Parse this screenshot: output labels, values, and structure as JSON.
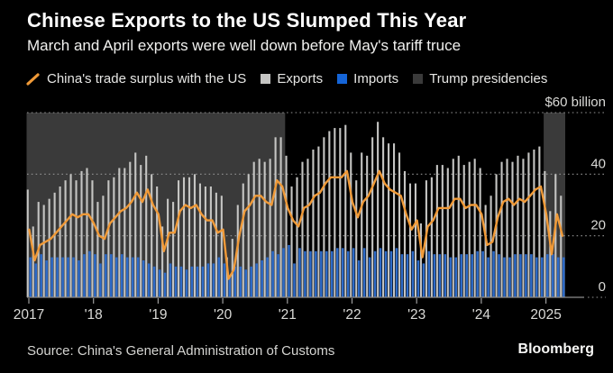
{
  "header": {
    "title": "Chinese Exports to the US Slumped This Year",
    "subtitle": "March and April exports were well down before May's tariff truce"
  },
  "legend": {
    "items": [
      {
        "label": "China's trade surplus with the US",
        "type": "line"
      },
      {
        "label": "Exports",
        "type": "square"
      },
      {
        "label": "Imports",
        "type": "square"
      },
      {
        "label": "Trump presidencies",
        "type": "square"
      }
    ]
  },
  "footer": {
    "source": "Source: China's General Administration of Customs",
    "brand": "Bloomberg"
  },
  "chart_data": {
    "type": "bar",
    "subtype": "monthly bars with line overlay and shaded period bands",
    "unit_label": "$60 billion",
    "start_month": "2017-01",
    "end_month": "2025-04",
    "x_axis": {
      "labels": [
        "2017",
        "'18",
        "'19",
        "'20",
        "'21",
        "'22",
        "'23",
        "'24",
        "2025"
      ]
    },
    "y_axis": {
      "range": [
        0,
        60
      ],
      "ticks": [
        {
          "value": 60,
          "label": "$60 billion"
        },
        {
          "value": 40,
          "label": "40"
        },
        {
          "value": 20,
          "label": "20"
        },
        {
          "value": 0,
          "label": "0"
        }
      ],
      "grid": "dotted"
    },
    "trump_presidencies": [
      {
        "from": "2017-01",
        "to": "2021-01"
      },
      {
        "from": "2025-01",
        "to": "2025-05"
      }
    ],
    "series": {
      "exports": {
        "name": "Exports",
        "values": [
          35,
          23,
          31,
          30,
          32,
          34,
          36,
          38,
          40,
          38,
          41,
          42,
          38,
          31,
          33,
          38,
          39,
          42,
          42,
          44,
          47,
          43,
          46,
          40,
          36,
          23,
          32,
          31,
          38,
          39,
          39,
          40,
          37,
          36,
          36,
          34,
          33,
          13,
          19,
          30,
          37,
          40,
          44,
          45,
          44,
          45,
          52,
          52,
          46,
          36,
          39,
          44,
          45,
          48,
          49,
          52,
          54,
          55,
          55,
          56,
          47,
          38,
          47,
          46,
          52,
          57,
          52,
          50,
          50,
          47,
          41,
          37,
          37,
          24,
          38,
          39,
          43,
          43,
          42,
          45,
          46,
          43,
          44,
          45,
          42,
          30,
          33,
          40,
          44,
          45,
          44,
          46,
          45,
          47,
          48,
          49,
          41,
          28,
          40,
          33
        ]
      },
      "imports": {
        "name": "Imports",
        "values": [
          13,
          11,
          14,
          12,
          13,
          13,
          13,
          13,
          13,
          12,
          14,
          15,
          14,
          11,
          14,
          14,
          13,
          14,
          13,
          13,
          13,
          12,
          11,
          10,
          9,
          8,
          11,
          10,
          10,
          9,
          10,
          10,
          10,
          11,
          11,
          13,
          11,
          7,
          10,
          10,
          9,
          10,
          11,
          12,
          13,
          15,
          14,
          16,
          17,
          11,
          16,
          15,
          15,
          15,
          15,
          15,
          15,
          16,
          16,
          15,
          16,
          12,
          16,
          13,
          15,
          16,
          15,
          15,
          16,
          14,
          14,
          15,
          12,
          11,
          15,
          14,
          14,
          14,
          13,
          13,
          14,
          14,
          14,
          15,
          15,
          13,
          15,
          14,
          13,
          13,
          14,
          14,
          14,
          14,
          13,
          13,
          14,
          14,
          13,
          13
        ]
      },
      "surplus": {
        "name": "China's trade surplus with the US",
        "values": [
          22,
          12,
          17,
          18,
          19,
          21,
          23,
          25,
          27,
          26,
          27,
          27,
          24,
          20,
          19,
          24,
          26,
          28,
          29,
          31,
          34,
          31,
          35,
          30,
          27,
          15,
          21,
          21,
          28,
          30,
          29,
          30,
          27,
          25,
          25,
          21,
          22,
          6,
          9,
          20,
          28,
          30,
          33,
          33,
          31,
          30,
          38,
          36,
          29,
          25,
          23,
          29,
          30,
          33,
          34,
          37,
          39,
          39,
          39,
          41,
          31,
          26,
          31,
          33,
          37,
          41,
          37,
          35,
          34,
          33,
          27,
          22,
          25,
          13,
          23,
          25,
          29,
          29,
          29,
          32,
          32,
          29,
          30,
          30,
          27,
          17,
          18,
          26,
          31,
          32,
          30,
          32,
          31,
          33,
          35,
          36,
          27,
          14,
          27,
          20
        ]
      }
    },
    "colors": {
      "background": "#000000",
      "surplus_line": "#f09a38",
      "exports_bar": "#c5c5c3",
      "imports_bar": "#2e6bc8",
      "imports_legend": "#1565d8",
      "trump_band": "#3a3a3a",
      "grid": "#929292",
      "axis": "#8d8d8d",
      "axis_text": "#dadad7"
    }
  }
}
